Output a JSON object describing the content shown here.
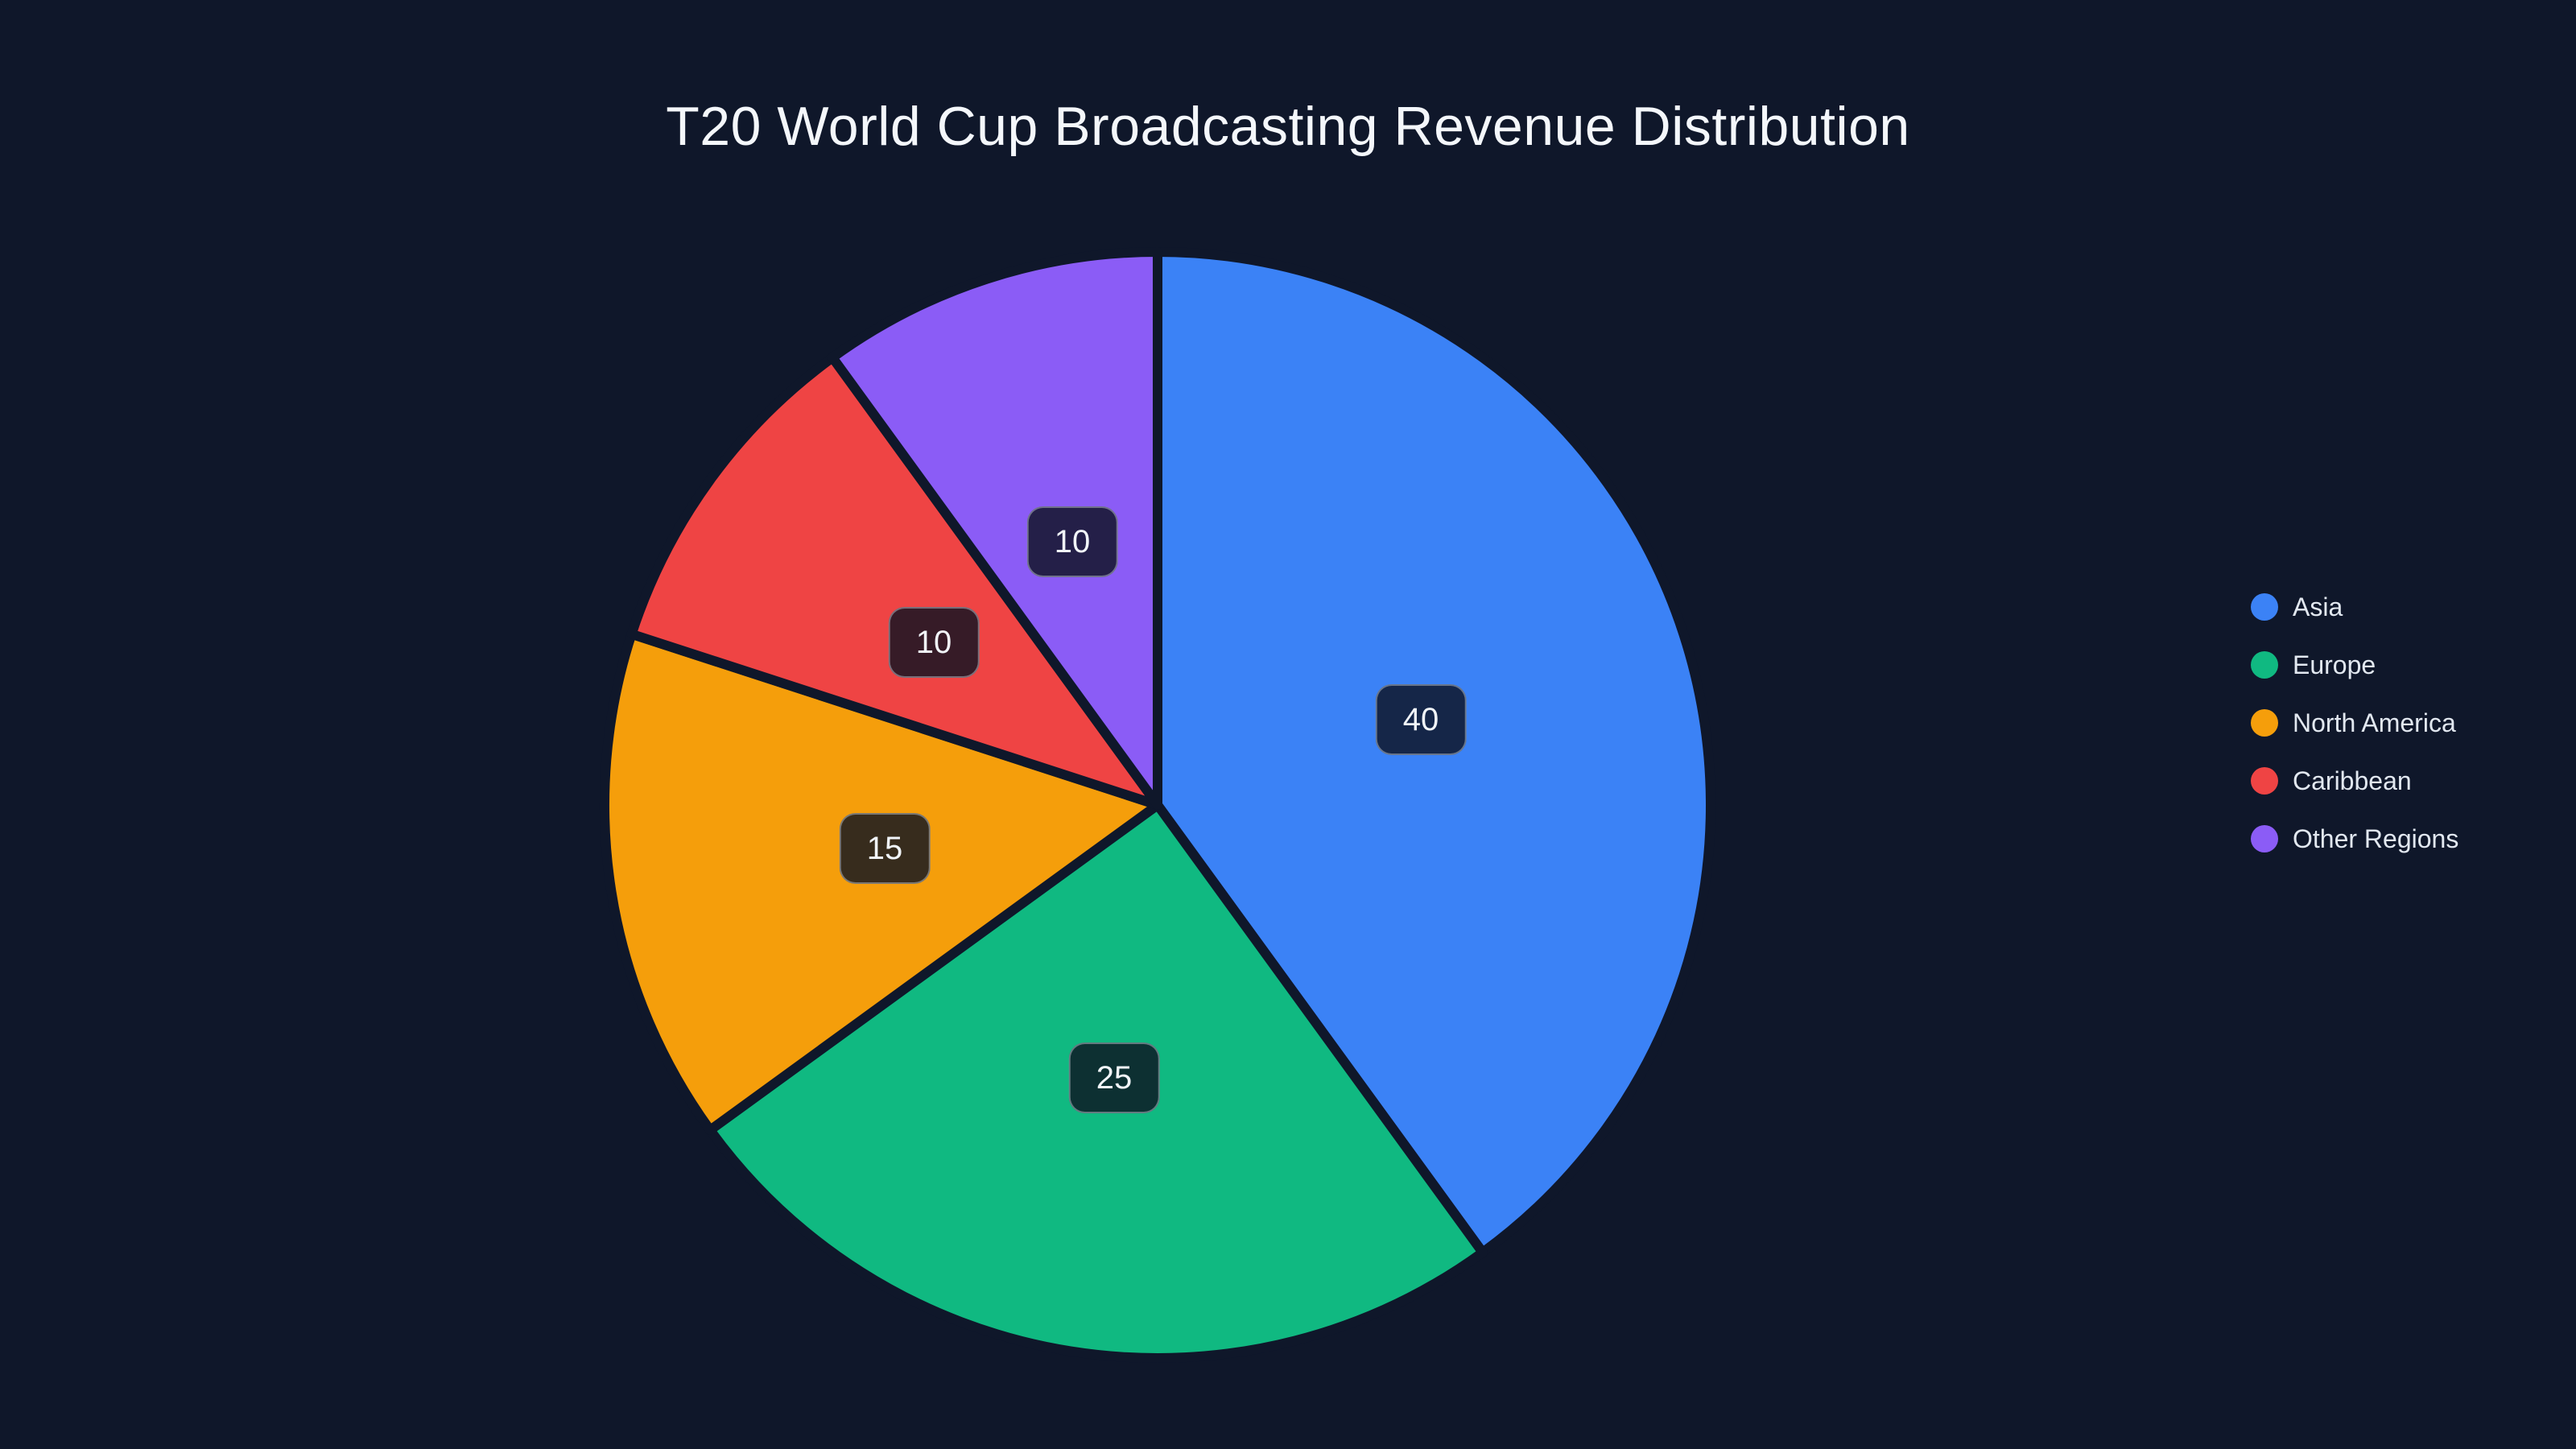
{
  "page": {
    "background_color": "#0f172a"
  },
  "chart_data": {
    "type": "pie",
    "title": "T20 World Cup Broadcasting Revenue Distribution",
    "categories": [
      "Asia",
      "Europe",
      "North America",
      "Caribbean",
      "Other Regions"
    ],
    "values": [
      40,
      25,
      15,
      10,
      10
    ],
    "data_labels": [
      "40",
      "25",
      "15",
      "10",
      "10"
    ],
    "colors": [
      "#3b82f6",
      "#10b981",
      "#f59e0b",
      "#ef4444",
      "#8b5cf6"
    ],
    "slice_border_color": "#0f172a",
    "start_angle_deg": 0,
    "direction": "clockwise",
    "label_position": "inside-mid-radius",
    "label_box_color": "rgba(13,18,33,0.82)",
    "label_text_color": "#f1f5f9",
    "legend_position": "right",
    "legend": [
      {
        "label": "Asia",
        "color": "#3b82f6"
      },
      {
        "label": "Europe",
        "color": "#10b981"
      },
      {
        "label": "North America",
        "color": "#f59e0b"
      },
      {
        "label": "Caribbean",
        "color": "#ef4444"
      },
      {
        "label": "Other Regions",
        "color": "#8b5cf6"
      }
    ]
  },
  "theme": {
    "title_color": "#f4f7fb",
    "legend_text_color": "#e2e8f0",
    "background_color": "#0f172a"
  }
}
